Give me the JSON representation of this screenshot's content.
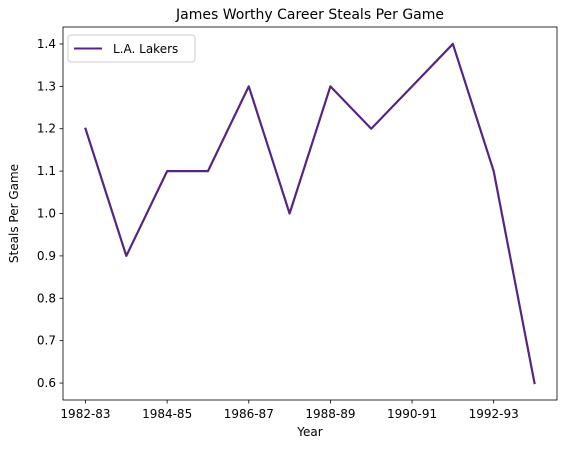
{
  "chart_data": {
    "type": "line",
    "title": "James Worthy Career Steals Per Game",
    "xlabel": "Year",
    "ylabel": "Steals Per Game",
    "x": [
      "1982-83",
      "1983-84",
      "1984-85",
      "1985-86",
      "1986-87",
      "1987-88",
      "1988-89",
      "1989-90",
      "1990-91",
      "1991-92",
      "1992-93",
      "1993-94"
    ],
    "x_tick_labels": [
      "1982-83",
      "1984-85",
      "1986-87",
      "1988-89",
      "1990-91",
      "1992-93"
    ],
    "y_ticks": [
      0.6,
      0.7,
      0.8,
      0.9,
      1.0,
      1.1,
      1.2,
      1.3,
      1.4
    ],
    "ylim": [
      0.56,
      1.44
    ],
    "series": [
      {
        "name": "L.A. Lakers",
        "color": "#552583",
        "values": [
          1.2,
          0.9,
          1.1,
          1.1,
          1.3,
          1.0,
          1.3,
          1.2,
          1.3,
          1.4,
          1.1,
          0.6
        ]
      }
    ],
    "legend": "top-left",
    "grid": false
  }
}
